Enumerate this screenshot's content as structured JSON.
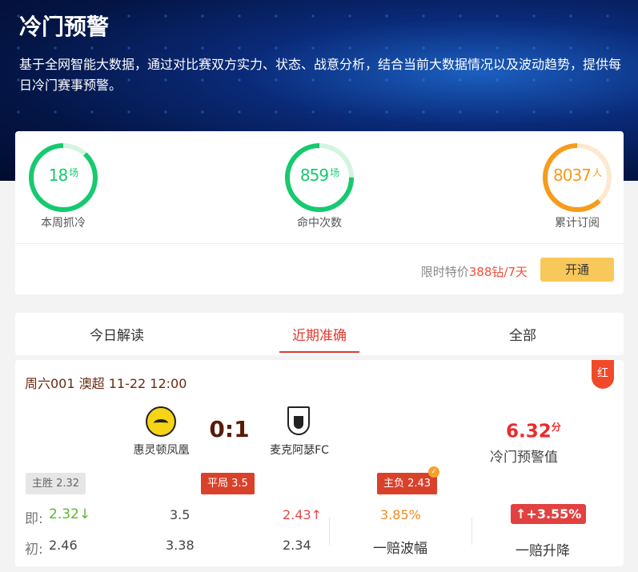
{
  "header": {
    "title": "冷门预警",
    "description": "基于全网智能大数据，通过对比赛双方实力、状态、战意分析，结合当前大数据情况以及波动趋势，提供每日冷门赛事预警。"
  },
  "stats": [
    {
      "value": "18",
      "unit": "场",
      "label": "本周抓冷",
      "progress": 0.88,
      "color": "#17c96f",
      "track": "#d4f4e2"
    },
    {
      "value": "859",
      "unit": "场",
      "label": "命中次数",
      "progress": 0.75,
      "color": "#17c96f",
      "track": "#d4f4e2"
    },
    {
      "value": "8037",
      "unit": "人",
      "label": "累计订阅",
      "progress": 0.62,
      "color": "#f79b1c",
      "track": "#fde9cf"
    }
  ],
  "promo": {
    "prefix": "限时特价",
    "price": "388钻/7天",
    "button": "开通"
  },
  "tabs": [
    {
      "label": "今日解读"
    },
    {
      "label": "近期准确",
      "active": true
    },
    {
      "label": "全部"
    }
  ],
  "match": {
    "info": "周六001 澳超 11-22 12:00",
    "badge": "红",
    "home": "惠灵顿凤凰",
    "away": "麦克阿瑟FC",
    "score": "0:1",
    "warning_value": "6.32",
    "warning_unit": "分",
    "warning_label": "冷门预警值",
    "picks": {
      "home": "主胜 2.32",
      "draw": "平局 3.5",
      "away": "主负 2.43"
    },
    "current": {
      "label": "即:",
      "home": "2.32↓",
      "draw": "3.5",
      "away": "2.43↑"
    },
    "initial": {
      "label": "初:",
      "home": "2.46",
      "draw": "3.38",
      "away": "2.34"
    },
    "volatility": {
      "value": "3.85%",
      "label": "一赔波幅"
    },
    "change": {
      "value": "↑+3.55%",
      "label": "一赔升降"
    }
  }
}
